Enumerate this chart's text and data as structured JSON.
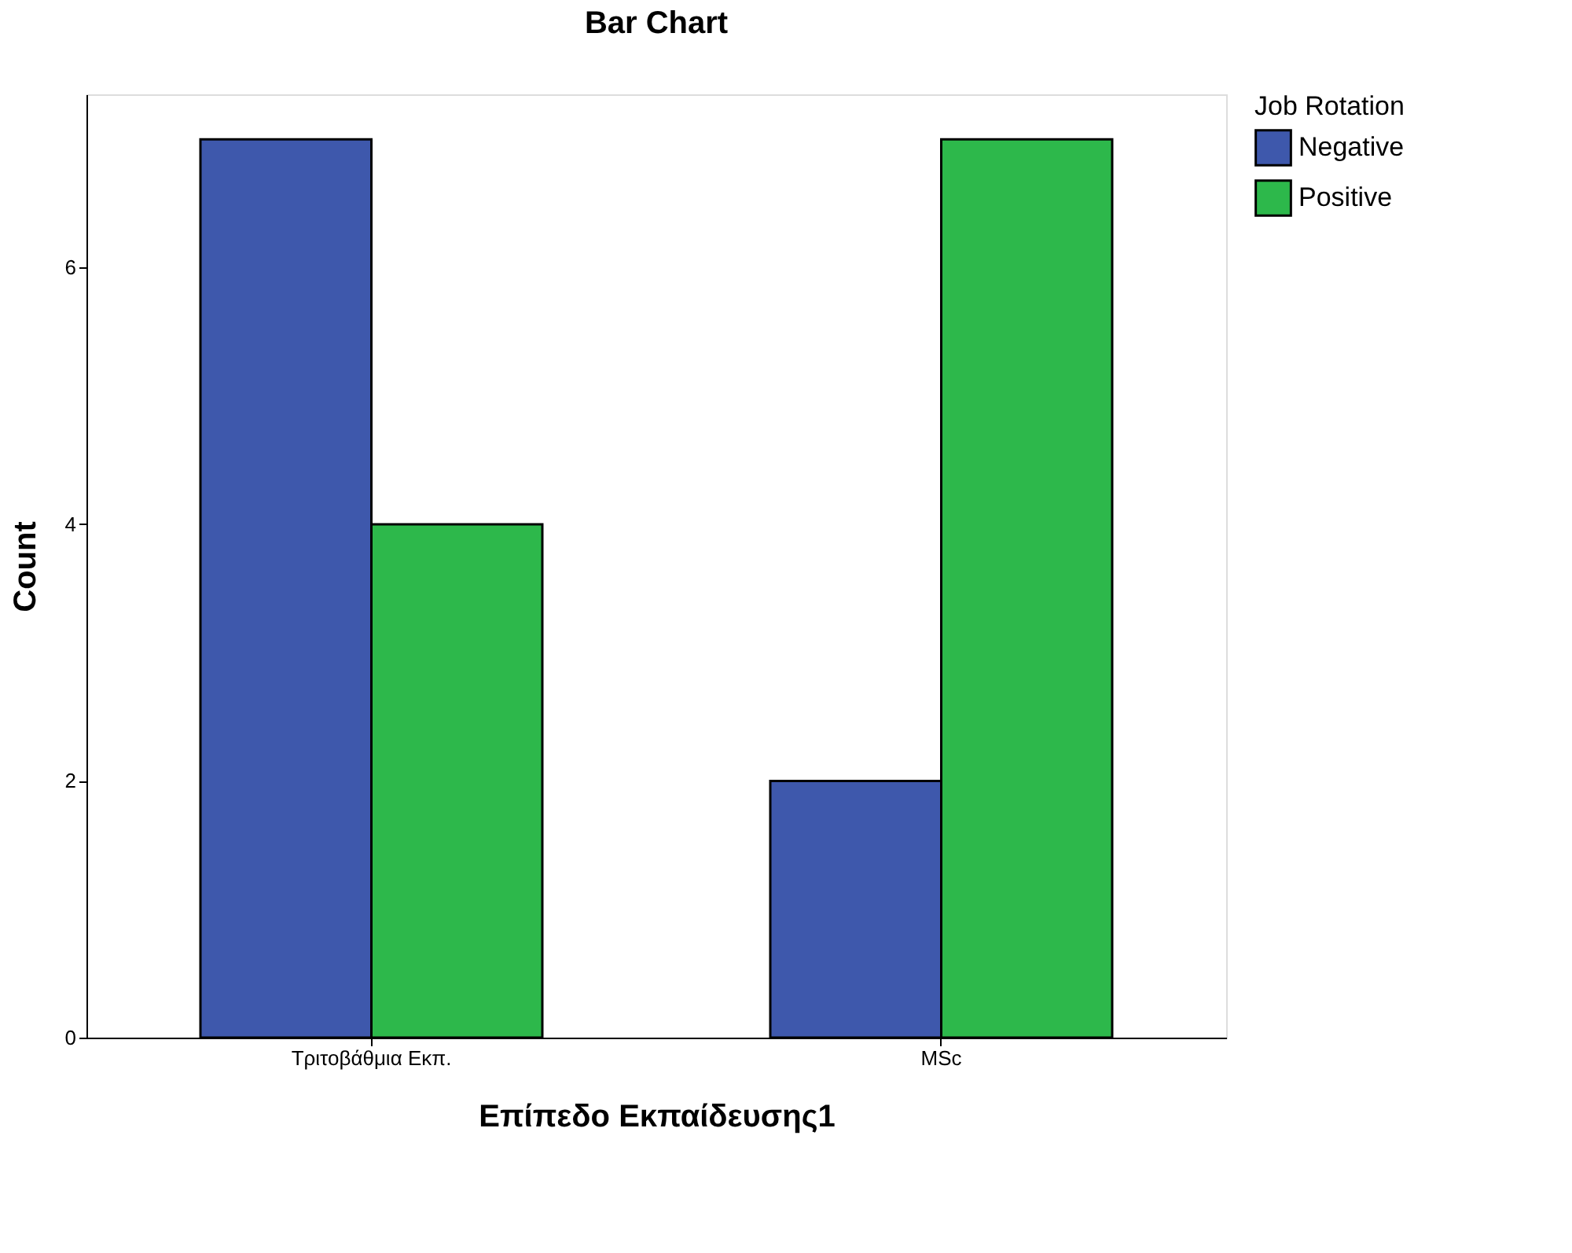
{
  "chart_data": {
    "type": "bar",
    "title": "Bar Chart",
    "xlabel": "Επίπεδο Εκπαίδευσης1",
    "ylabel": "Count",
    "legend_title": "Job Rotation",
    "categories": [
      "Τριτοβάθμια Εκπ.",
      "MSc"
    ],
    "series": [
      {
        "name": "Negative",
        "color": "#3e58ac",
        "values": [
          7,
          2
        ]
      },
      {
        "name": "Positive",
        "color": "#2db84b",
        "values": [
          4,
          7
        ]
      }
    ],
    "ylim": [
      0,
      7.35
    ],
    "yticks": [
      0,
      2,
      4,
      6
    ],
    "grid": false,
    "legend": "top right"
  }
}
